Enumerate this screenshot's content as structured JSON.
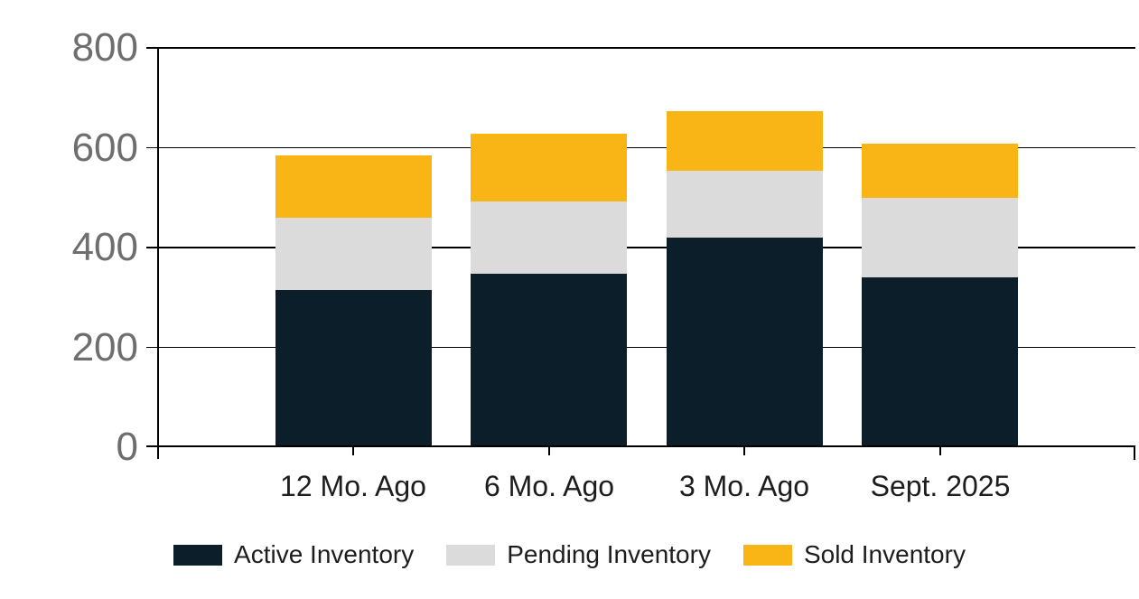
{
  "chart_data": {
    "type": "bar",
    "stacked": true,
    "title": "",
    "xlabel": "",
    "ylabel": "",
    "categories": [
      "12 Mo. Ago",
      "6 Mo. Ago",
      "3 Mo. Ago",
      "Sept. 2025"
    ],
    "series": [
      {
        "name": "Active Inventory",
        "color": "#0D1E2B",
        "values": [
          315,
          348,
          420,
          340
        ]
      },
      {
        "name": "Pending Inventory",
        "color": "#DBDBDB",
        "values": [
          145,
          144,
          134,
          160
        ]
      },
      {
        "name": "Sold Inventory",
        "color": "#F9B515",
        "values": [
          125,
          136,
          119,
          108
        ]
      }
    ],
    "stack_totals": [
      585,
      628,
      673,
      608
    ],
    "ylim": [
      0,
      800
    ],
    "yticks": [
      0,
      200,
      400,
      600,
      800
    ],
    "grid": true,
    "legend_position": "bottom"
  },
  "colors": {
    "background": "#FFFFFF",
    "grid_line": "#000000",
    "axis_line": "#000000",
    "y_tick_label": "#6E6E6E",
    "x_tick_label": "#1D1D1D",
    "legend_label": "#1D1D1D"
  }
}
